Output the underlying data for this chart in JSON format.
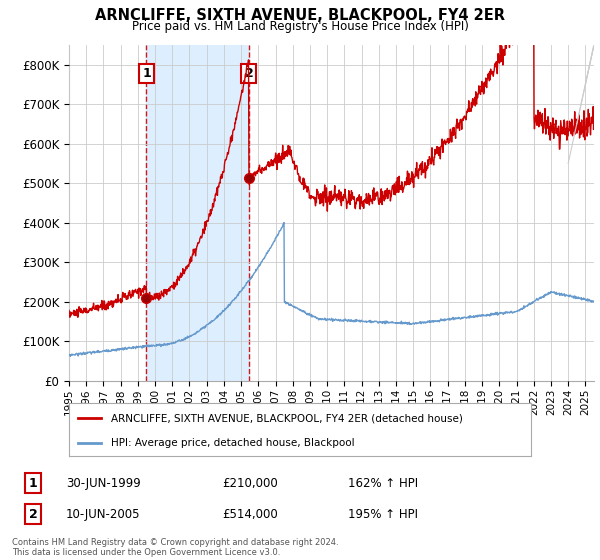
{
  "title": "ARNCLIFFE, SIXTH AVENUE, BLACKPOOL, FY4 2ER",
  "subtitle": "Price paid vs. HM Land Registry's House Price Index (HPI)",
  "xlim_start": 1995.0,
  "xlim_end": 2025.5,
  "ylim": [
    0,
    850000
  ],
  "yticks": [
    0,
    100000,
    200000,
    300000,
    400000,
    500000,
    600000,
    700000,
    800000
  ],
  "ytick_labels": [
    "£0",
    "£100K",
    "£200K",
    "£300K",
    "£400K",
    "£500K",
    "£600K",
    "£700K",
    "£800K"
  ],
  "xtick_labels": [
    "1995",
    "1996",
    "1997",
    "1998",
    "1999",
    "2000",
    "2001",
    "2002",
    "2003",
    "2004",
    "2005",
    "2006",
    "2007",
    "2008",
    "2009",
    "2010",
    "2011",
    "2012",
    "2013",
    "2014",
    "2015",
    "2016",
    "2017",
    "2018",
    "2019",
    "2020",
    "2021",
    "2022",
    "2023",
    "2024",
    "2025"
  ],
  "sale1_x": 1999.5,
  "sale1_y": 210000,
  "sale1_label": "1",
  "sale1_date": "30-JUN-1999",
  "sale1_price": "£210,000",
  "sale1_hpi": "162% ↑ HPI",
  "sale2_x": 2005.45,
  "sale2_y": 514000,
  "sale2_label": "2",
  "sale2_date": "10-JUN-2005",
  "sale2_price": "£514,000",
  "sale2_hpi": "195% ↑ HPI",
  "red_line_color": "#cc0000",
  "blue_line_color": "#6699cc",
  "shade_color": "#ddeeff",
  "grid_color": "#cccccc",
  "background_color": "#ffffff",
  "legend_label_red": "ARNCLIFFE, SIXTH AVENUE, BLACKPOOL, FY4 2ER (detached house)",
  "legend_label_blue": "HPI: Average price, detached house, Blackpool",
  "footer": "Contains HM Land Registry data © Crown copyright and database right 2024.\nThis data is licensed under the Open Government Licence v3.0."
}
